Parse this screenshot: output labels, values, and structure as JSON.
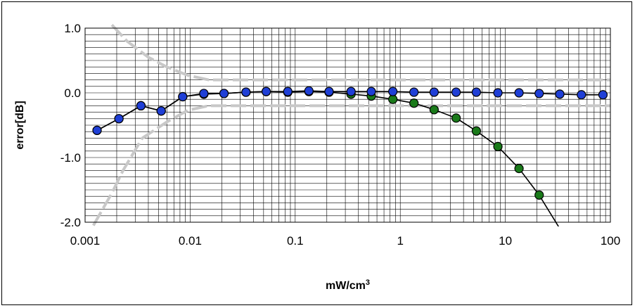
{
  "chart_data": {
    "type": "scatter",
    "x_scale": "log",
    "xlim": [
      0.001,
      100
    ],
    "ylim": [
      -2.0,
      1.0
    ],
    "grid": true,
    "legend": "none",
    "xlabel": {
      "main": "mW/cm",
      "sup": "3"
    },
    "ylabel": "error[dB]",
    "x_ticks": [
      {
        "v": 0.001,
        "label": "0.001"
      },
      {
        "v": 0.01,
        "label": "0.01"
      },
      {
        "v": 0.1,
        "label": "0.1"
      },
      {
        "v": 1,
        "label": "1"
      },
      {
        "v": 10,
        "label": "10"
      },
      {
        "v": 100,
        "label": "100"
      }
    ],
    "y_ticks": [
      {
        "v": 1.0,
        "label": "1.0"
      },
      {
        "v": 0.0,
        "label": "0.0"
      },
      {
        "v": -1.0,
        "label": "-1.0"
      },
      {
        "v": -2.0,
        "label": "-2.0"
      }
    ],
    "series": [
      {
        "color": "#1a7a1a",
        "marker": "circle",
        "line": "#000000",
        "points": [
          [
            0.0013,
            -0.58
          ],
          [
            0.0021,
            -0.4
          ],
          [
            0.0034,
            -0.2
          ],
          [
            0.0053,
            -0.28
          ],
          [
            0.0085,
            -0.06
          ],
          [
            0.0135,
            -0.02
          ],
          [
            0.021,
            -0.01
          ],
          [
            0.034,
            0.01
          ],
          [
            0.053,
            0.02
          ],
          [
            0.085,
            0.01
          ],
          [
            0.135,
            0.02
          ],
          [
            0.21,
            0.01
          ],
          [
            0.34,
            -0.02
          ],
          [
            0.53,
            -0.05
          ],
          [
            0.85,
            -0.1
          ],
          [
            1.35,
            -0.16
          ],
          [
            2.1,
            -0.26
          ],
          [
            3.4,
            -0.39
          ],
          [
            5.3,
            -0.59
          ],
          [
            8.5,
            -0.83
          ],
          [
            13.5,
            -1.17
          ],
          [
            21,
            -1.58
          ],
          [
            33,
            -2.1
          ]
        ]
      },
      {
        "color": "#1f3fd6",
        "marker": "circle",
        "line": "#000000",
        "points": [
          [
            0.0013,
            -0.58
          ],
          [
            0.0021,
            -0.4
          ],
          [
            0.0034,
            -0.2
          ],
          [
            0.0053,
            -0.28
          ],
          [
            0.0085,
            -0.06
          ],
          [
            0.0135,
            -0.01
          ],
          [
            0.021,
            -0.01
          ],
          [
            0.034,
            0.01
          ],
          [
            0.053,
            0.02
          ],
          [
            0.085,
            0.02
          ],
          [
            0.135,
            0.03
          ],
          [
            0.21,
            0.02
          ],
          [
            0.34,
            0.02
          ],
          [
            0.53,
            0.02
          ],
          [
            0.85,
            0.02
          ],
          [
            1.35,
            0.01
          ],
          [
            2.1,
            0.01
          ],
          [
            3.4,
            0.01
          ],
          [
            5.3,
            0.01
          ],
          [
            8.5,
            0.0
          ],
          [
            13.5,
            0.0
          ],
          [
            21,
            -0.01
          ],
          [
            33,
            -0.02
          ],
          [
            53,
            -0.03
          ],
          [
            85,
            -0.03
          ]
        ]
      }
    ],
    "limit_bands": [
      {
        "color": "#c8c8c8",
        "points": [
          [
            0.0018,
            1.05
          ],
          [
            0.0025,
            0.8
          ],
          [
            0.004,
            0.55
          ],
          [
            0.006,
            0.4
          ],
          [
            0.0095,
            0.27
          ],
          [
            0.015,
            0.2
          ],
          [
            100,
            0.2
          ]
        ]
      },
      {
        "color": "#c8c8c8",
        "points": [
          [
            0.0012,
            -2.05
          ],
          [
            0.0018,
            -1.55
          ],
          [
            0.0023,
            -1.2
          ],
          [
            0.0035,
            -0.7
          ],
          [
            0.006,
            -0.45
          ],
          [
            0.0095,
            -0.27
          ],
          [
            0.015,
            -0.2
          ],
          [
            100,
            -0.2
          ]
        ]
      }
    ]
  }
}
